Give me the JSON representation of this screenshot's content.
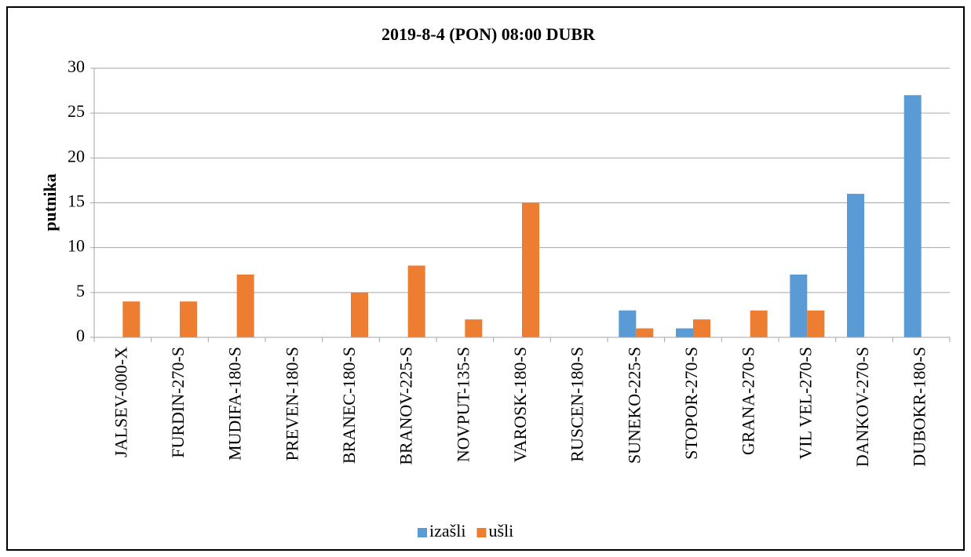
{
  "chart_data": {
    "type": "bar",
    "title": "2019-8-4 (PON) 08:00 DUBR",
    "y_label": "putnika",
    "categories": [
      "JALSEV-000-X",
      "FURDIN-270-S",
      "MUDIFA-180-S",
      "PREVEN-180-S",
      "BRANEC-180-S",
      "BRANOV-225-S",
      "NOVPUT-135-S",
      "VAROSK-180-S",
      "RUSCEN-180-S",
      "SUNEKO-225-S",
      "STOPOR-270-S",
      "GRANA-270-S",
      "VIL VEL-270-S",
      "DANKOV-270-S",
      "DUBOKR-180-S"
    ],
    "series": [
      {
        "name": "izašli",
        "color": "#5b9bd5",
        "values": [
          0,
          0,
          0,
          0,
          0,
          0,
          0,
          0,
          0,
          3,
          1,
          0,
          7,
          16,
          27
        ]
      },
      {
        "name": "ušli",
        "color": "#ed7d31",
        "values": [
          4,
          4,
          7,
          0,
          5,
          8,
          2,
          15,
          0,
          1,
          2,
          3,
          3,
          0,
          0
        ]
      }
    ],
    "ylim": [
      0,
      30
    ],
    "yticks": [
      0,
      5,
      10,
      15,
      20,
      25,
      30
    ],
    "grid": true,
    "legend": "bottom"
  }
}
